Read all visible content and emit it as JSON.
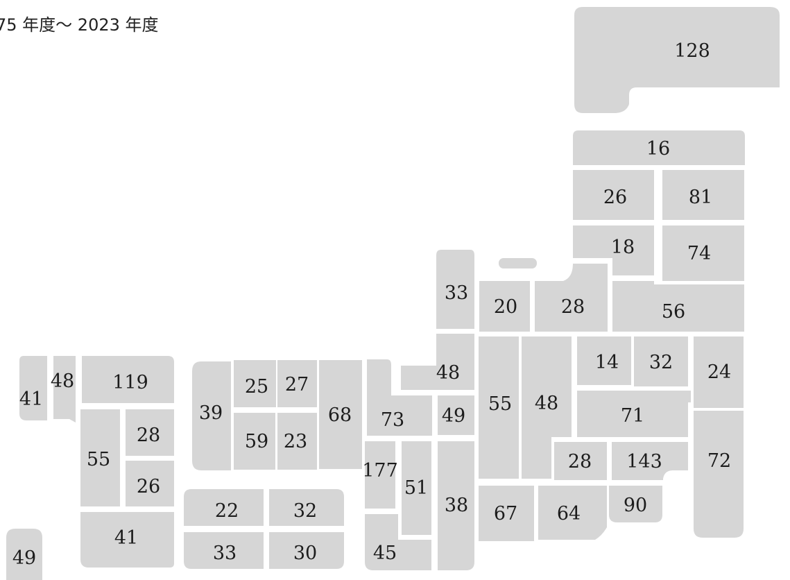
{
  "title": "75 年度〜 2023 年度",
  "tile_color": "#d6d6d6",
  "text_color": "#1c1c1c",
  "prefectures": [
    {
      "id": "hokkaido",
      "value": "128"
    },
    {
      "id": "aomori",
      "value": "16"
    },
    {
      "id": "akita",
      "value": "26"
    },
    {
      "id": "iwate",
      "value": "81"
    },
    {
      "id": "yamagata",
      "value": "18"
    },
    {
      "id": "miyagi",
      "value": "74"
    },
    {
      "id": "ishikawa",
      "value": "33"
    },
    {
      "id": "toyama",
      "value": "20"
    },
    {
      "id": "niigata",
      "value": "28"
    },
    {
      "id": "fukushima",
      "value": "56"
    },
    {
      "id": "fukui",
      "value": "48"
    },
    {
      "id": "gifu",
      "value": "55"
    },
    {
      "id": "nagano",
      "value": "48"
    },
    {
      "id": "gunma",
      "value": "14"
    },
    {
      "id": "tochigi",
      "value": "32"
    },
    {
      "id": "ibaraki",
      "value": "24"
    },
    {
      "id": "saitama",
      "value": "71"
    },
    {
      "id": "shiga",
      "value": "49"
    },
    {
      "id": "kyoto",
      "value": "73"
    },
    {
      "id": "hyogo",
      "value": "68"
    },
    {
      "id": "tottori",
      "value": "27"
    },
    {
      "id": "shimane",
      "value": "25"
    },
    {
      "id": "yamaguchi",
      "value": "39"
    },
    {
      "id": "hiroshima",
      "value": "59"
    },
    {
      "id": "okayama",
      "value": "23"
    },
    {
      "id": "osaka",
      "value": "177"
    },
    {
      "id": "nara",
      "value": "51"
    },
    {
      "id": "mie",
      "value": "38"
    },
    {
      "id": "wakayama",
      "value": "45"
    },
    {
      "id": "aichi",
      "value": "67"
    },
    {
      "id": "shizuoka",
      "value": "64"
    },
    {
      "id": "yamanashi",
      "value": "28"
    },
    {
      "id": "tokyo",
      "value": "143"
    },
    {
      "id": "chiba",
      "value": "72"
    },
    {
      "id": "kanagawa",
      "value": "90"
    },
    {
      "id": "ehime",
      "value": "22"
    },
    {
      "id": "kagawa",
      "value": "32"
    },
    {
      "id": "kochi",
      "value": "33"
    },
    {
      "id": "tokushima",
      "value": "30"
    },
    {
      "id": "nagasaki",
      "value": "41"
    },
    {
      "id": "saga",
      "value": "48"
    },
    {
      "id": "fukuoka",
      "value": "119"
    },
    {
      "id": "kumamoto",
      "value": "55"
    },
    {
      "id": "oita",
      "value": "28"
    },
    {
      "id": "miyazaki",
      "value": "26"
    },
    {
      "id": "kagoshima",
      "value": "41"
    },
    {
      "id": "okinawa",
      "value": "49"
    }
  ]
}
